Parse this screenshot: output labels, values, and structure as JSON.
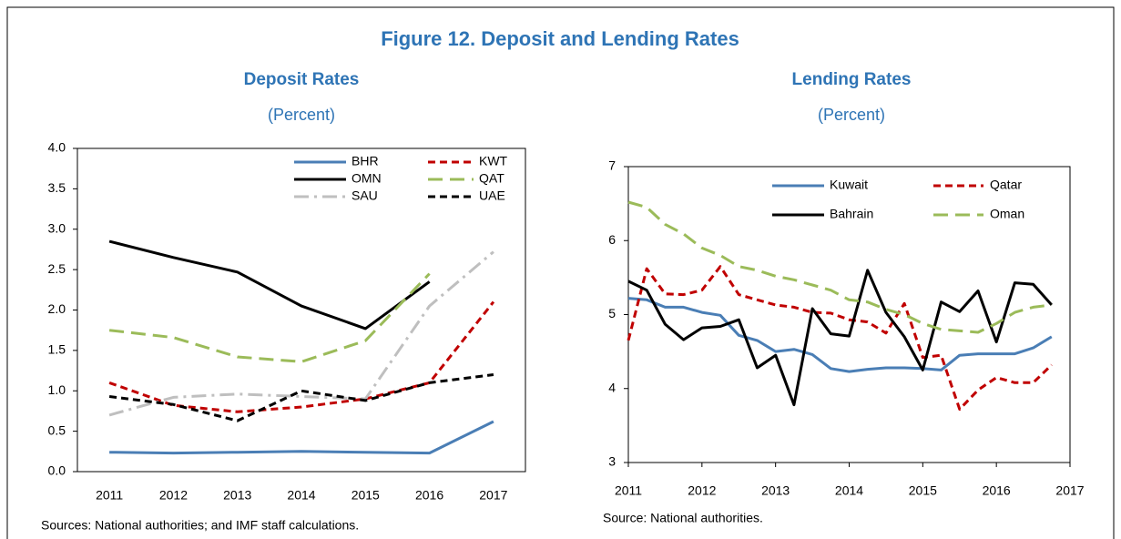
{
  "figure_title": "Figure 12. Deposit and Lending Rates",
  "chart_data": [
    {
      "type": "line",
      "title": "Deposit Rates",
      "subtitle": "(Percent)",
      "note": "Sources: National authorities; and IMF staff calculations.",
      "categories": [
        "2011",
        "2012",
        "2013",
        "2014",
        "2015",
        "2016",
        "2017"
      ],
      "ylim": [
        0,
        4
      ],
      "yticks": [
        {
          "value": 0,
          "label": "0.0"
        },
        0.5,
        {
          "value": 1,
          "label": "1.0"
        },
        1.5,
        {
          "value": 2,
          "label": "2.0"
        },
        2.5,
        {
          "value": 3,
          "label": "3.0"
        },
        3.5,
        {
          "value": 4,
          "label": "4.0"
        }
      ],
      "grid": false,
      "series": [
        {
          "name": "BHR",
          "color": "#4a7eb5",
          "style": "solid",
          "values": [
            0.24,
            0.23,
            0.24,
            0.25,
            0.24,
            0.23,
            0.62
          ]
        },
        {
          "name": "KWT",
          "color": "#c00000",
          "style": "dashed",
          "values": [
            1.1,
            0.82,
            0.74,
            0.8,
            0.9,
            1.1,
            2.1
          ]
        },
        {
          "name": "OMN",
          "color": "#000000",
          "style": "solid",
          "values": [
            2.85,
            2.65,
            2.47,
            2.05,
            1.77,
            2.35,
            null
          ]
        },
        {
          "name": "QAT",
          "color": "#9bbb59",
          "style": "longdash",
          "values": [
            1.75,
            1.66,
            1.42,
            1.36,
            1.62,
            2.45,
            null
          ]
        },
        {
          "name": "SAU",
          "color": "#bfbfbf",
          "style": "dashdot",
          "values": [
            0.7,
            0.92,
            0.96,
            0.93,
            0.9,
            2.05,
            2.72
          ]
        },
        {
          "name": "UAE",
          "color": "#000000",
          "style": "dashed",
          "values": [
            0.93,
            0.83,
            0.63,
            1.0,
            0.88,
            1.1,
            1.2
          ]
        }
      ]
    },
    {
      "type": "line",
      "title": "Lending Rates",
      "subtitle": "(Percent)",
      "note": "Source: National authorities.",
      "x": [
        2011,
        2011.25,
        2011.5,
        2011.75,
        2012,
        2012.25,
        2012.5,
        2012.75,
        2013,
        2013.25,
        2013.5,
        2013.75,
        2014,
        2014.25,
        2014.5,
        2014.75,
        2015,
        2015.25,
        2015.5,
        2015.75,
        2016,
        2016.25,
        2016.5,
        2016.75
      ],
      "xlim": [
        2011,
        2017
      ],
      "xticks": [
        2011,
        2012,
        2013,
        2014,
        2015,
        2016,
        2017
      ],
      "ylim": [
        3,
        7
      ],
      "yticks": [
        3,
        4,
        5,
        6,
        7
      ],
      "grid": false,
      "series": [
        {
          "name": "Kuwait",
          "color": "#4a7eb5",
          "style": "solid",
          "values": [
            5.22,
            5.2,
            5.1,
            5.1,
            5.03,
            4.99,
            4.72,
            4.65,
            4.5,
            4.53,
            4.46,
            4.27,
            4.23,
            4.26,
            4.28,
            4.28,
            4.27,
            4.25,
            4.45,
            4.47,
            4.47,
            4.47,
            4.55,
            4.7
          ]
        },
        {
          "name": "Qatar",
          "color": "#c00000",
          "style": "dashed",
          "values": [
            4.65,
            5.62,
            5.28,
            5.27,
            5.33,
            5.65,
            5.27,
            5.2,
            5.13,
            5.1,
            5.03,
            5.02,
            4.93,
            4.9,
            4.75,
            5.15,
            4.42,
            4.45,
            3.72,
            3.98,
            4.15,
            4.08,
            4.08,
            4.32
          ]
        },
        {
          "name": "Bahrain",
          "color": "#000000",
          "style": "solid",
          "values": [
            5.45,
            5.33,
            4.87,
            4.66,
            4.82,
            4.84,
            4.93,
            4.28,
            4.45,
            3.78,
            5.08,
            4.74,
            4.71,
            5.6,
            5.03,
            4.7,
            4.25,
            5.17,
            5.04,
            5.32,
            4.63,
            5.43,
            5.41,
            5.13
          ]
        },
        {
          "name": "Oman",
          "color": "#9bbb59",
          "style": "longdash",
          "values": [
            6.52,
            6.45,
            6.22,
            6.09,
            5.9,
            5.8,
            5.65,
            5.6,
            5.52,
            5.47,
            5.4,
            5.33,
            5.2,
            5.17,
            5.07,
            5.0,
            4.88,
            4.8,
            4.78,
            4.76,
            4.88,
            5.03,
            5.1,
            5.13
          ]
        }
      ]
    }
  ]
}
